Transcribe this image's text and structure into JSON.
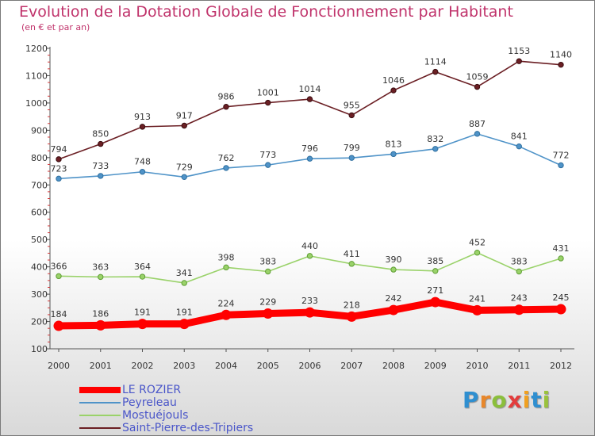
{
  "title": "Evolution de la Dotation Globale de Fonctionnement par Habitant",
  "subtitle": "(en € et par an)",
  "logo_text": "Proxiti",
  "colors": {
    "title": "#c0336b",
    "legend_text": "#4a56c9",
    "axis_labels": "#333333",
    "point_labels": "#333333"
  },
  "chart_data": {
    "type": "line",
    "title": "Evolution de la Dotation Globale de Fonctionnement par Habitant",
    "subtitle": "(en € et par an)",
    "xlabel": "",
    "ylabel": "",
    "x": [
      "2000",
      "2001",
      "2002",
      "2003",
      "2004",
      "2005",
      "2006",
      "2007",
      "2008",
      "2009",
      "2010",
      "2011",
      "2012"
    ],
    "ylim": [
      100,
      1200
    ],
    "yticks": [
      100,
      200,
      300,
      400,
      500,
      600,
      700,
      800,
      900,
      1000,
      1100,
      1200
    ],
    "grid": false,
    "legend_position": "bottom-left",
    "series": [
      {
        "name": "LE ROZIER",
        "color": "#ff0000",
        "values": [
          184,
          186,
          191,
          191,
          224,
          229,
          233,
          218,
          242,
          271,
          241,
          243,
          245
        ]
      },
      {
        "name": "Peyreleau",
        "color": "#4f93c8",
        "values": [
          723,
          733,
          748,
          729,
          762,
          773,
          796,
          799,
          813,
          832,
          887,
          841,
          772
        ]
      },
      {
        "name": "Mostuéjouls",
        "color": "#9ad26a",
        "values": [
          366,
          363,
          364,
          341,
          398,
          383,
          440,
          411,
          390,
          385,
          452,
          383,
          431
        ]
      },
      {
        "name": "Saint-Pierre-des-Tripiers",
        "color": "#6b1f24",
        "values": [
          794,
          850,
          913,
          917,
          986,
          1001,
          1014,
          955,
          1046,
          1114,
          1059,
          1153,
          1140
        ]
      }
    ]
  }
}
